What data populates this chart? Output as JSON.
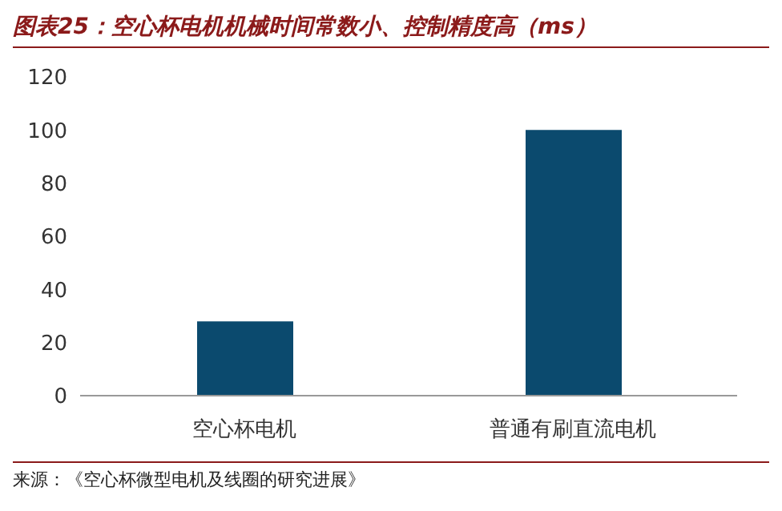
{
  "chart_data": {
    "type": "bar",
    "title": "图表25：空心杯电机机械时间常数小、控制精度高（ms）",
    "categories": [
      "空心杯电机",
      "普通有刷直流电机"
    ],
    "values": [
      28,
      100
    ],
    "color": "#0b4a6e",
    "ylim": [
      0,
      120
    ],
    "yticks": [
      0,
      20,
      40,
      60,
      80,
      100,
      120
    ],
    "grid": false,
    "legend": false,
    "annotations": [
      "来源：《空心杯微型电机及线圈的研究进展》"
    ]
  }
}
